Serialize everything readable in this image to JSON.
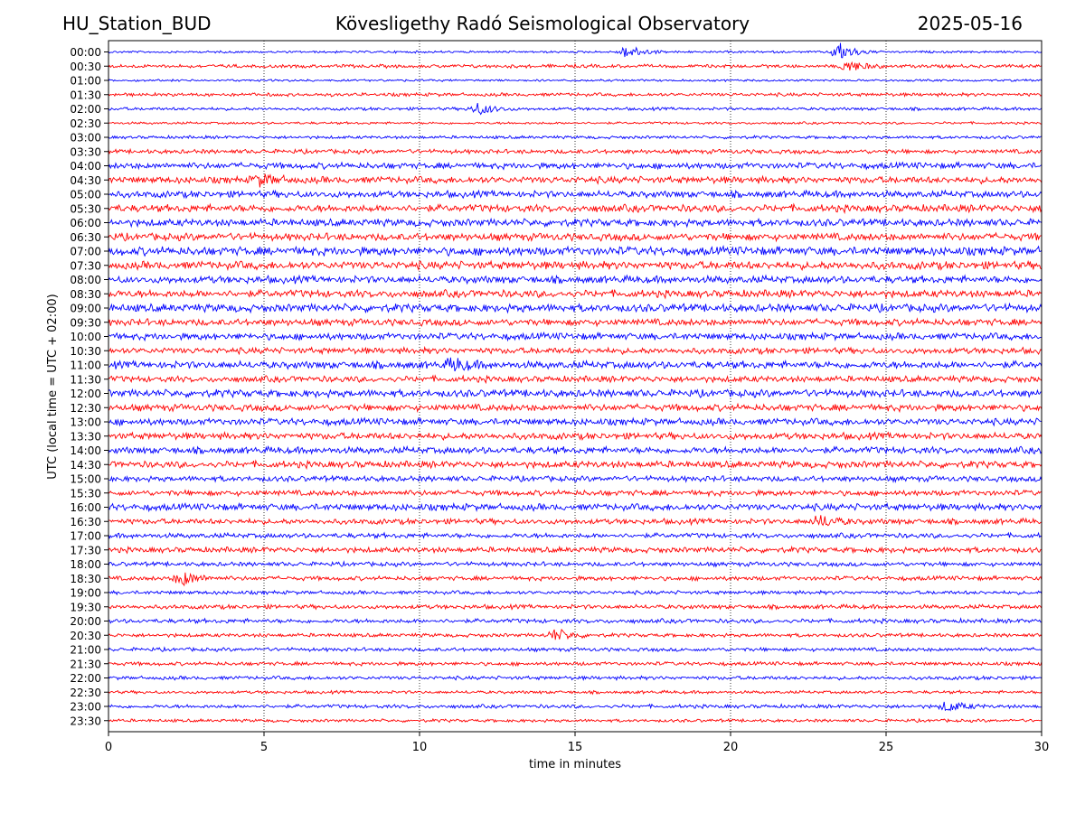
{
  "header": {
    "station": "HU_Station_BUD",
    "observatory": "Köveslig­ethy Radó Seismological Observatory",
    "date": "2025-05-16"
  },
  "chart_data": {
    "type": "line",
    "title": "Köveslig­ethy Radó Seismological Observatory",
    "xlabel": "time in minutes",
    "ylabel": "UTC (local time = UTC + 02:00)",
    "xlim": [
      0,
      30
    ],
    "xticks": [
      0,
      5,
      10,
      15,
      20,
      25,
      30
    ],
    "grid": "vertical dotted at x ticks",
    "series_colors": [
      "#0000ff",
      "#ff0000"
    ],
    "color_pattern": "alternating blue (on the hour) and red (half hour)",
    "rows": [
      "00:00",
      "00:30",
      "01:00",
      "01:30",
      "02:00",
      "02:30",
      "03:00",
      "03:30",
      "04:00",
      "04:30",
      "05:00",
      "05:30",
      "06:00",
      "06:30",
      "07:00",
      "07:30",
      "08:00",
      "08:30",
      "09:00",
      "09:30",
      "10:00",
      "10:30",
      "11:00",
      "11:30",
      "12:00",
      "12:30",
      "13:00",
      "13:30",
      "14:00",
      "14:30",
      "15:00",
      "15:30",
      "16:00",
      "16:30",
      "17:00",
      "17:30",
      "18:00",
      "18:30",
      "19:00",
      "19:30",
      "20:00",
      "20:30",
      "21:00",
      "21:30",
      "22:00",
      "22:30",
      "23:00",
      "23:30"
    ],
    "noise_level": [
      0.18,
      0.28,
      0.18,
      0.28,
      0.25,
      0.2,
      0.25,
      0.35,
      0.5,
      0.55,
      0.55,
      0.6,
      0.6,
      0.6,
      0.7,
      0.65,
      0.6,
      0.6,
      0.65,
      0.55,
      0.55,
      0.5,
      0.6,
      0.5,
      0.6,
      0.55,
      0.55,
      0.55,
      0.55,
      0.55,
      0.45,
      0.45,
      0.55,
      0.45,
      0.4,
      0.45,
      0.35,
      0.35,
      0.3,
      0.35,
      0.35,
      0.3,
      0.3,
      0.3,
      0.3,
      0.25,
      0.3,
      0.25
    ],
    "events": [
      {
        "row": "00:00",
        "minute": 16.7,
        "amp": 1.6
      },
      {
        "row": "00:00",
        "minute": 23.5,
        "amp": 2.2
      },
      {
        "row": "00:30",
        "minute": 23.8,
        "amp": 1.3
      },
      {
        "row": "02:00",
        "minute": 11.9,
        "amp": 1.4
      },
      {
        "row": "04:30",
        "minute": 4.9,
        "amp": 1.2
      },
      {
        "row": "11:00",
        "minute": 11.1,
        "amp": 1.4
      },
      {
        "row": "16:30",
        "minute": 22.9,
        "amp": 1.3
      },
      {
        "row": "18:30",
        "minute": 2.4,
        "amp": 1.6
      },
      {
        "row": "20:30",
        "minute": 14.4,
        "amp": 1.4
      },
      {
        "row": "23:00",
        "minute": 27.0,
        "amp": 1.2
      }
    ]
  }
}
